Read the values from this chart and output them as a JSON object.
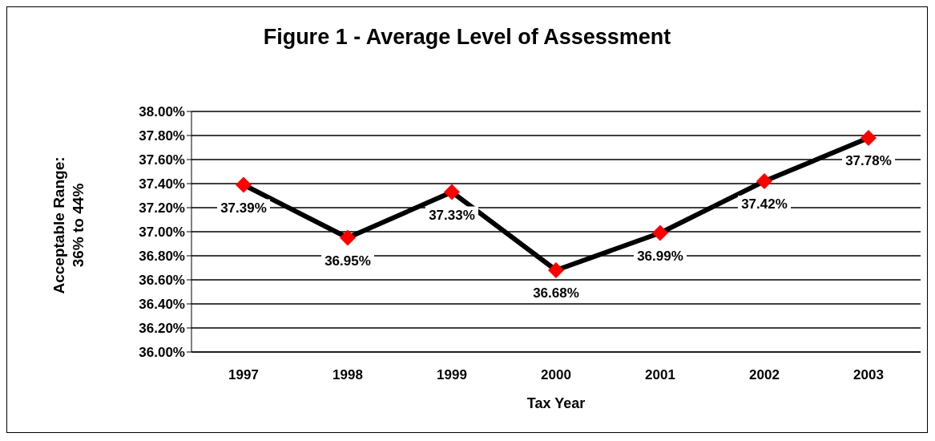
{
  "chart_data": {
    "type": "line",
    "title": "Figure 1 - Average Level of Assessment",
    "xlabel": "Tax Year",
    "ylabel": "Acceptable Range:\n36% to 44%",
    "categories": [
      "1997",
      "1998",
      "1999",
      "2000",
      "2001",
      "2002",
      "2003"
    ],
    "series": [
      {
        "color": "#000000",
        "colors": [
          "#ff0000",
          "#ff0000",
          "#ff0000",
          "#ff0000",
          "#ff0000",
          "#ff0000",
          "#ff0000"
        ],
        "values": [
          37.39,
          36.95,
          37.33,
          36.68,
          36.99,
          37.42,
          37.78
        ],
        "value_labels": [
          "37.39%",
          "36.95%",
          "37.33%",
          "36.68%",
          "36.99%",
          "37.42%",
          "37.78%"
        ]
      }
    ],
    "ylim": [
      36,
      38
    ],
    "yticks": [
      {
        "value": 36,
        "label": "36.00%"
      },
      {
        "value": 36.2,
        "label": "36.20%"
      },
      {
        "value": 36.4,
        "label": "36.40%"
      },
      {
        "value": 36.6,
        "label": "36.60%"
      },
      {
        "value": 36.8,
        "label": "36.80%"
      },
      {
        "value": 37,
        "label": "37.00%"
      },
      {
        "value": 37.2,
        "label": "37.20%"
      },
      {
        "value": 37.4,
        "label": "37.40%"
      },
      {
        "value": 37.6,
        "label": "37.60%"
      },
      {
        "value": 37.8,
        "label": "37.80%"
      },
      {
        "value": 38,
        "label": "38.00%"
      }
    ],
    "grid": "y",
    "marker": "diamond",
    "line_style": "solid",
    "legend": false
  }
}
